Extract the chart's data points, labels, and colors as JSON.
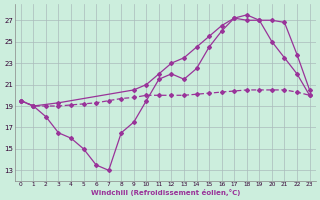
{
  "xlabel": "Windchill (Refroidissement éolien,°C)",
  "background_color": "#cceedd",
  "grid_color": "#aabbbb",
  "line_color": "#993399",
  "x_ticks": [
    0,
    1,
    2,
    3,
    4,
    5,
    6,
    7,
    8,
    9,
    10,
    11,
    12,
    13,
    14,
    15,
    16,
    17,
    18,
    19,
    20,
    21,
    22,
    23
  ],
  "y_ticks": [
    13,
    15,
    17,
    19,
    21,
    23,
    25,
    27
  ],
  "ylim": [
    12.0,
    28.5
  ],
  "xlim": [
    -0.5,
    23.5
  ],
  "line1_x": [
    0,
    1,
    2,
    3,
    4,
    5,
    6,
    7,
    8,
    9,
    10,
    11,
    12,
    13,
    14,
    15,
    16,
    17,
    18,
    19,
    20,
    21,
    22,
    23
  ],
  "line1_y": [
    19.5,
    19.0,
    18.0,
    16.5,
    16.0,
    15.0,
    13.5,
    13.0,
    16.5,
    17.5,
    19.5,
    21.5,
    22.0,
    21.5,
    22.5,
    24.5,
    26.0,
    27.2,
    27.5,
    27.0,
    25.0,
    23.5,
    22.0,
    20.0
  ],
  "line2_x": [
    0,
    1,
    3,
    9,
    10,
    11,
    12,
    13,
    14,
    15,
    16,
    17,
    18,
    19,
    20,
    21,
    22,
    23
  ],
  "line2_y": [
    19.5,
    19.0,
    19.3,
    20.5,
    21.0,
    22.0,
    23.0,
    23.5,
    24.5,
    25.5,
    26.5,
    27.2,
    27.0,
    27.0,
    27.0,
    26.8,
    23.8,
    20.5
  ],
  "line3_x": [
    0,
    1,
    2,
    3,
    4,
    5,
    6,
    7,
    8,
    9,
    10,
    11,
    12,
    13,
    14,
    15,
    16,
    17,
    18,
    19,
    20,
    21,
    22,
    23
  ],
  "line3_y": [
    19.5,
    19.0,
    19.0,
    19.0,
    19.1,
    19.2,
    19.3,
    19.5,
    19.7,
    19.8,
    20.0,
    20.0,
    20.0,
    20.0,
    20.1,
    20.2,
    20.3,
    20.4,
    20.5,
    20.5,
    20.5,
    20.5,
    20.3,
    20.0
  ]
}
